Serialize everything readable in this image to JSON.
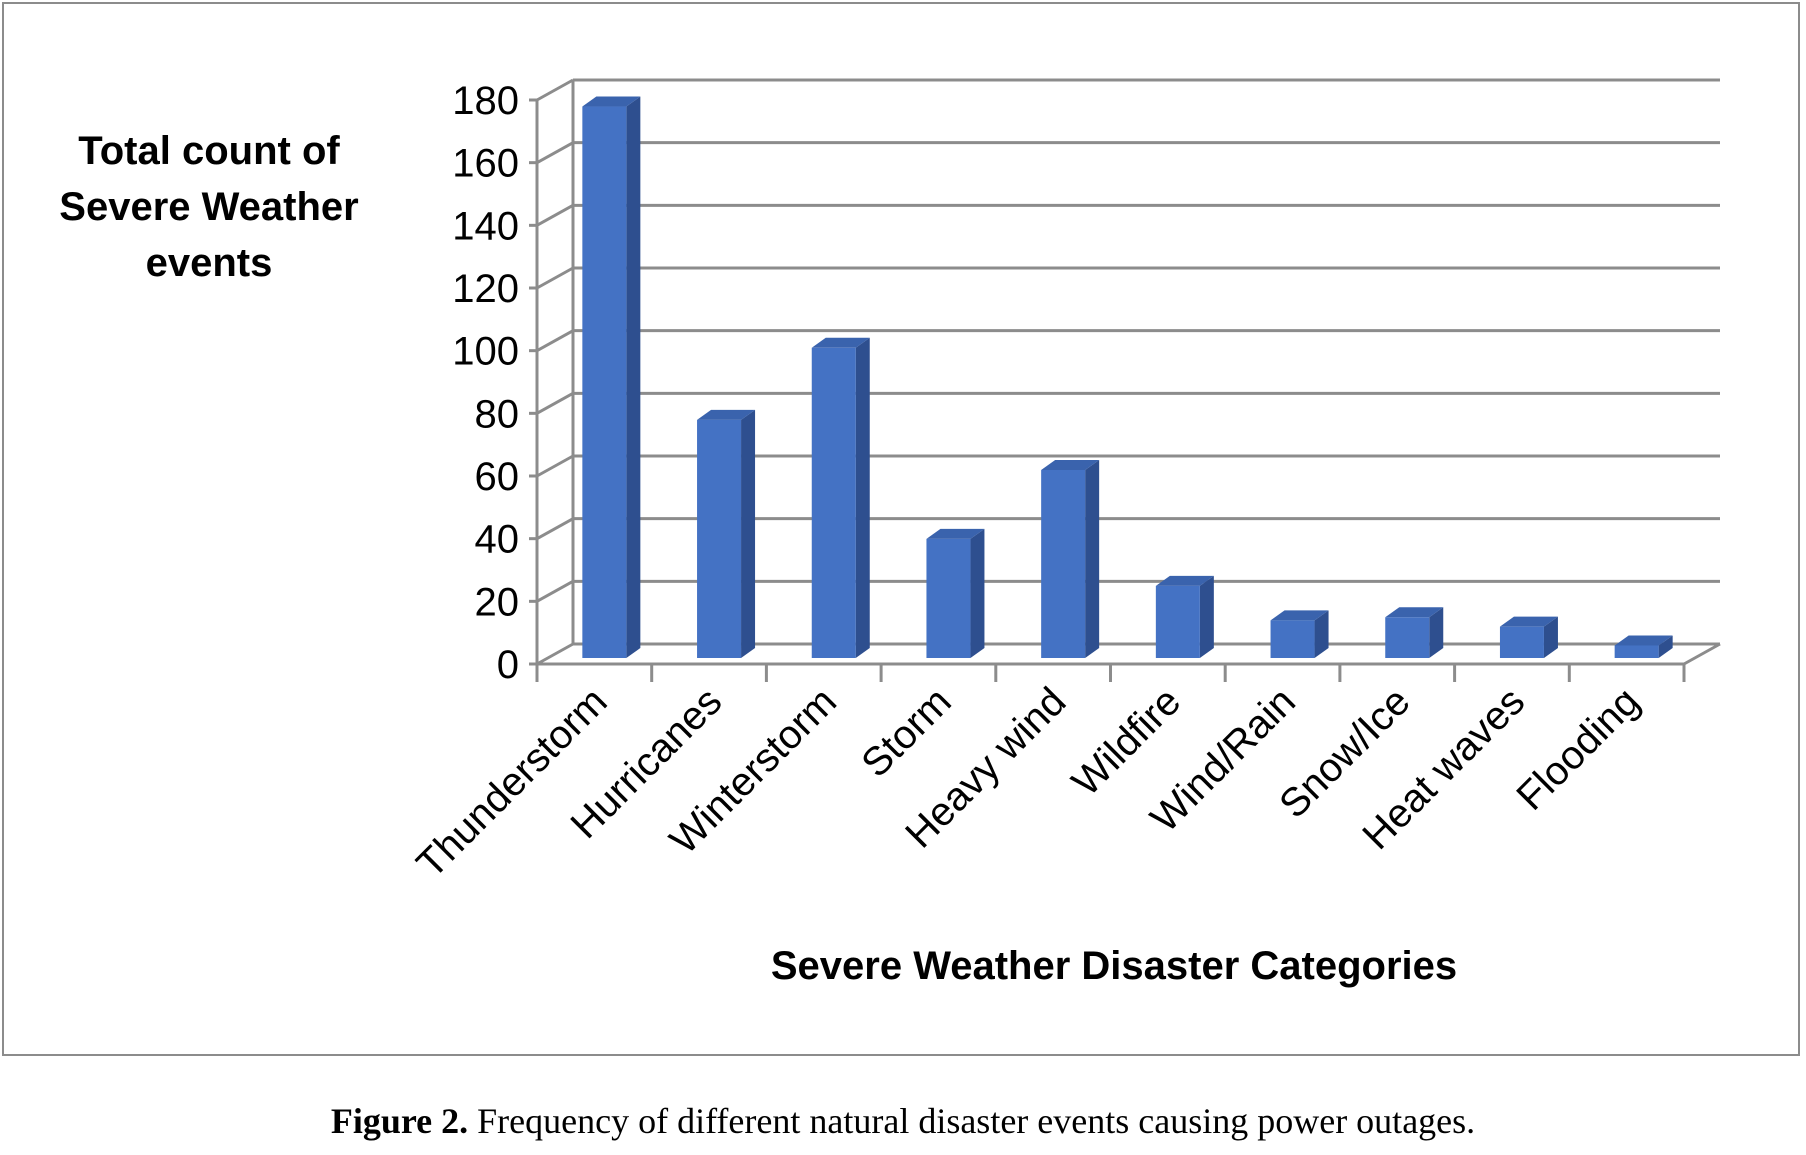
{
  "figure": {
    "caption_label": "Figure 2.",
    "caption_text": "Frequency of different natural disaster events causing power outages."
  },
  "chart_data": {
    "type": "bar",
    "style": "3d-column",
    "categories": [
      "Thunderstorm",
      "Hurricanes",
      "Winterstorm",
      "Storm",
      "Heavy wind",
      "Wildfire",
      "Wind/Rain",
      "Snow/Ice",
      "Heat waves",
      "Flooding"
    ],
    "values": [
      176,
      76,
      99,
      38,
      60,
      23,
      12,
      13,
      10,
      4
    ],
    "ylabel_lines": [
      "Total count of",
      "Severe Weather",
      "events"
    ],
    "xlabel": "Severe Weather Disaster Categories",
    "ylim": [
      0,
      180
    ],
    "yticks": [
      0,
      20,
      40,
      60,
      80,
      100,
      120,
      140,
      160,
      180
    ],
    "grid": true,
    "legend": "none",
    "colors": {
      "bar_front": "#4472c4",
      "bar_side": "#2e4f8f",
      "bar_top": "#3a63ad",
      "grid": "#8c8c8c"
    }
  }
}
